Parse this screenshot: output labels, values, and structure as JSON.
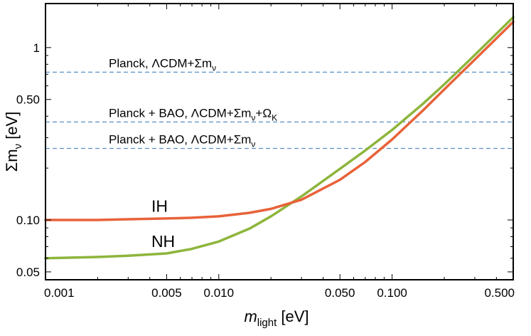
{
  "chart_data": {
    "type": "line",
    "xscale": "log",
    "yscale": "log",
    "xlim": [
      0.001,
      0.5
    ],
    "ylim": [
      0.045,
      1.8
    ],
    "xlabel": {
      "main": "m",
      "sub": "light",
      "unit": " [eV]"
    },
    "ylabel": {
      "main": "Σm",
      "sub": "ν",
      "unit": " [eV]"
    },
    "xticks": [
      {
        "value": 0.001,
        "label": "0.001"
      },
      {
        "value": 0.005,
        "label": "0.005"
      },
      {
        "value": 0.01,
        "label": "0.010"
      },
      {
        "value": 0.05,
        "label": "0.050"
      },
      {
        "value": 0.1,
        "label": "0.100"
      },
      {
        "value": 0.5,
        "label": "0.500"
      }
    ],
    "yticks": [
      {
        "value": 0.05,
        "label": "0.05"
      },
      {
        "value": 0.1,
        "label": "0.10"
      },
      {
        "value": 0.5,
        "label": "0.50"
      },
      {
        "value": 1,
        "label": "1"
      }
    ],
    "series": [
      {
        "name": "IH",
        "color": "#e8623a",
        "x": [
          0.001,
          0.002,
          0.003,
          0.005,
          0.007,
          0.01,
          0.015,
          0.02,
          0.03,
          0.05,
          0.07,
          0.1,
          0.15,
          0.2,
          0.3,
          0.5
        ],
        "y": [
          0.1,
          0.1,
          0.101,
          0.102,
          0.103,
          0.105,
          0.11,
          0.116,
          0.131,
          0.171,
          0.217,
          0.293,
          0.43,
          0.572,
          0.852,
          1.41
        ]
      },
      {
        "name": "NH",
        "color": "#8db53c",
        "x": [
          0.001,
          0.002,
          0.003,
          0.005,
          0.007,
          0.01,
          0.015,
          0.02,
          0.03,
          0.05,
          0.07,
          0.1,
          0.15,
          0.2,
          0.3,
          0.5
        ],
        "y": [
          0.06,
          0.061,
          0.062,
          0.064,
          0.068,
          0.075,
          0.089,
          0.105,
          0.137,
          0.198,
          0.253,
          0.333,
          0.47,
          0.612,
          0.905,
          1.5
        ]
      }
    ],
    "hlines": [
      {
        "value": 0.72,
        "label": {
          "parts": [
            {
              "t": "Planck, ΛCDM+Σm"
            },
            {
              "t": "ν",
              "sub": true
            }
          ]
        }
      },
      {
        "value": 0.37,
        "label": {
          "parts": [
            {
              "t": "Planck + BAO, ΛCDM+Σm"
            },
            {
              "t": "ν",
              "sub": true
            },
            {
              "t": "+Ω"
            },
            {
              "t": "K",
              "sub": true
            }
          ]
        }
      },
      {
        "value": 0.26,
        "label": {
          "parts": [
            {
              "t": "Planck + BAO, ΛCDM+Σm"
            },
            {
              "t": "ν",
              "sub": true
            }
          ]
        }
      }
    ],
    "hline_color": "#5b8fc7",
    "curve_labels": [
      {
        "text": "IH",
        "series": "IH"
      },
      {
        "text": "NH",
        "series": "NH"
      }
    ]
  }
}
